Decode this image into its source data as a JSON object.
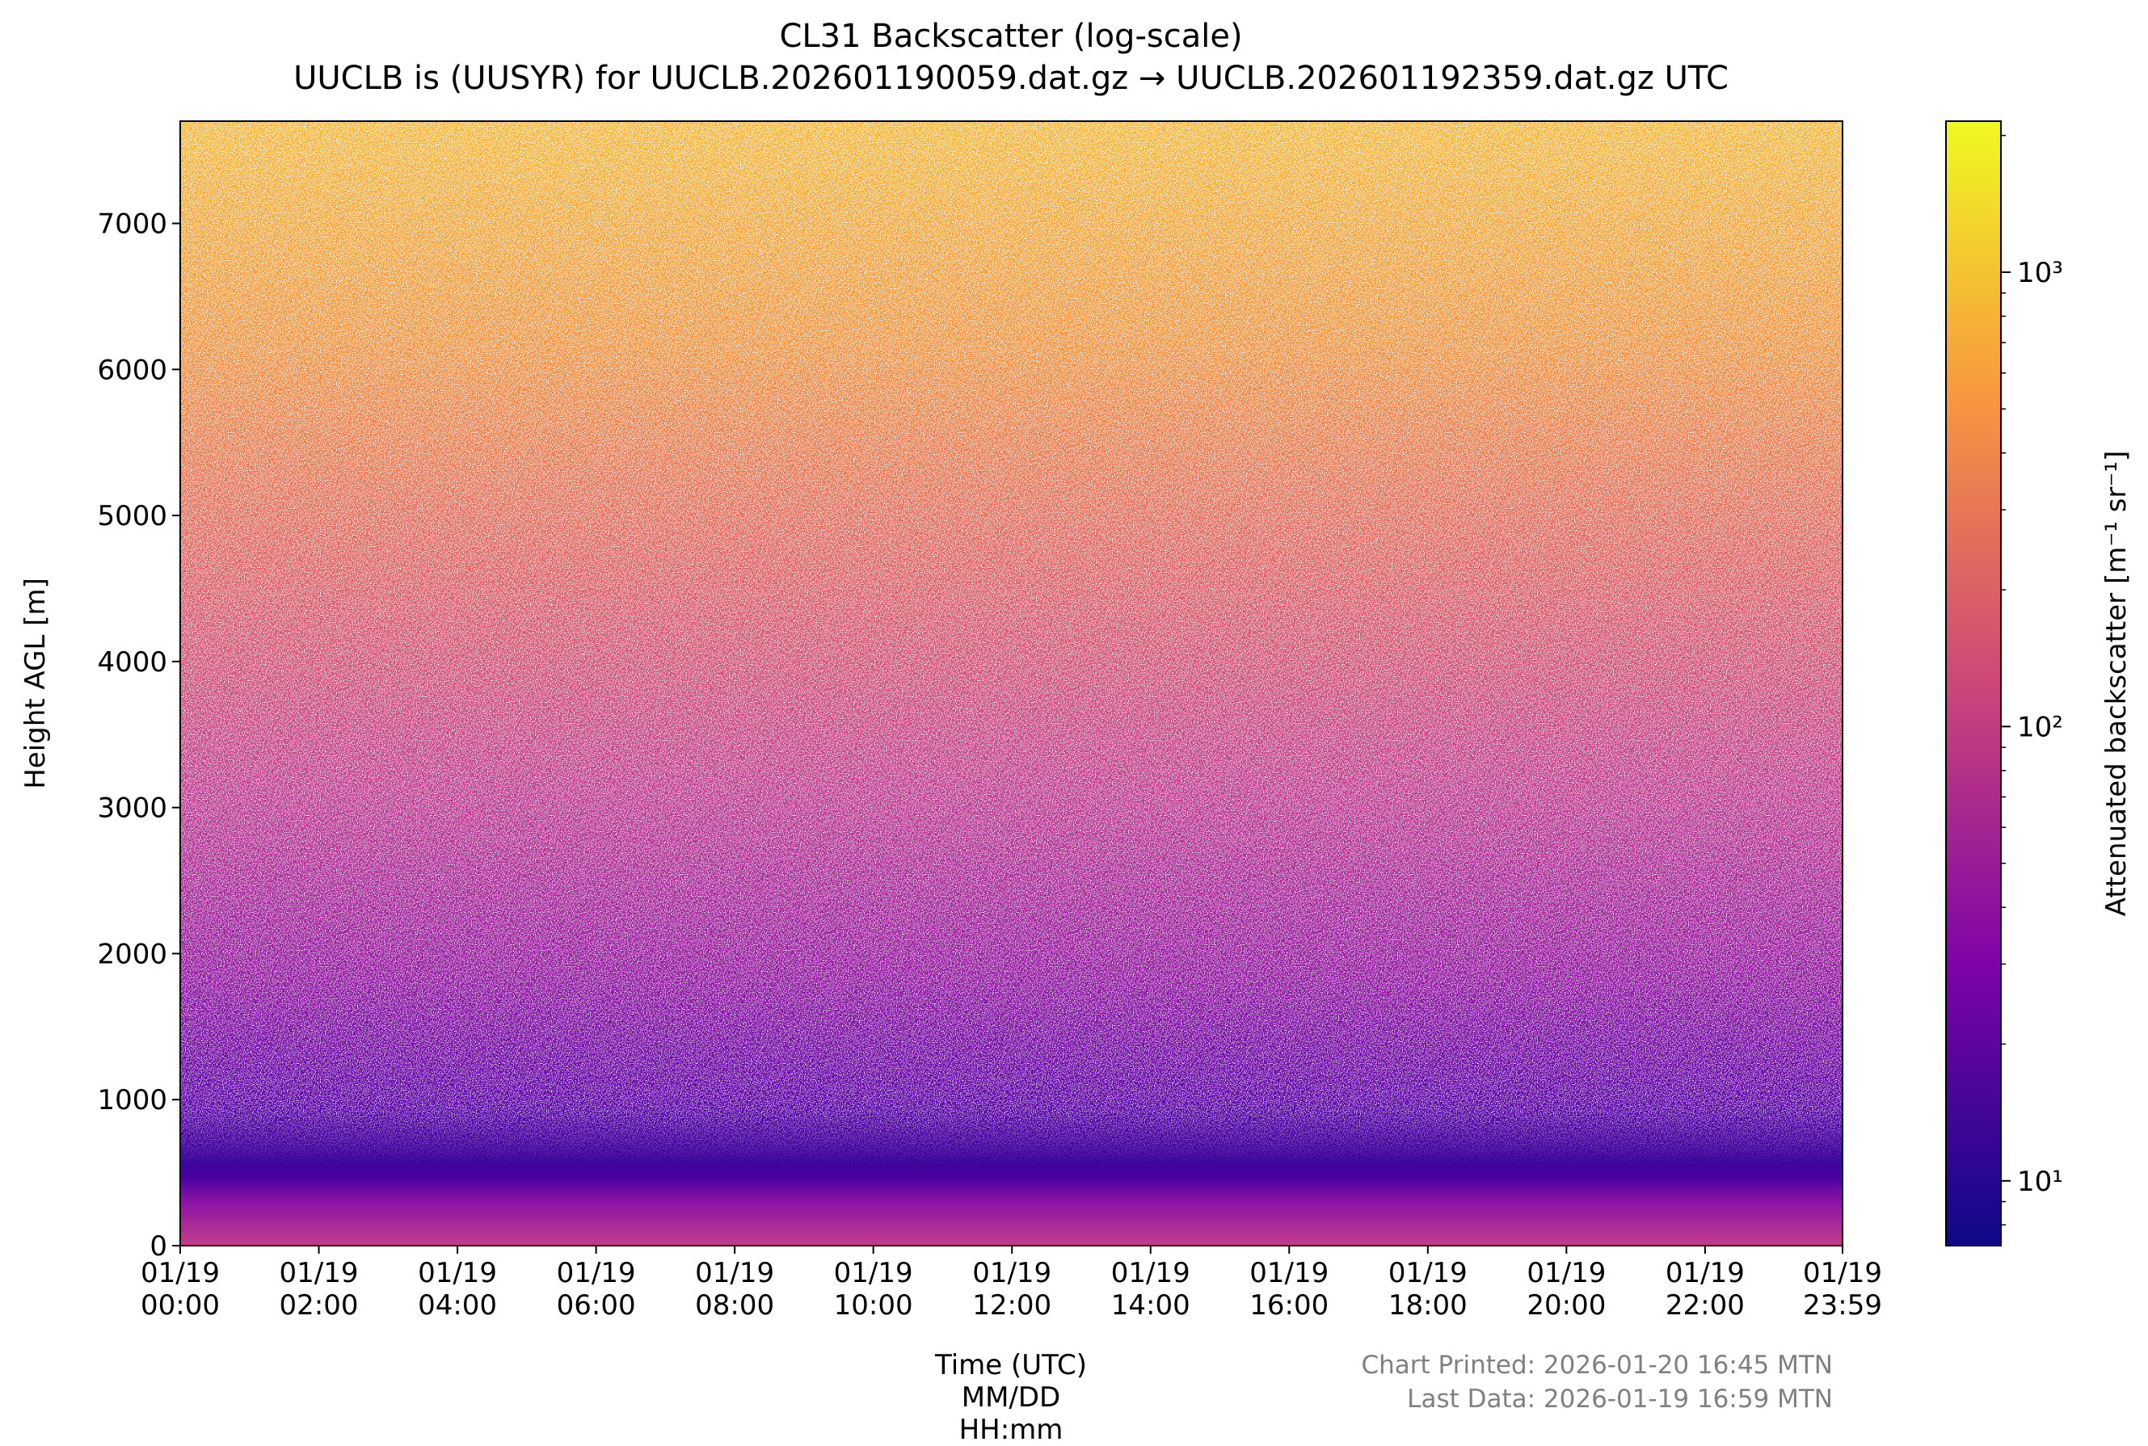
{
  "chart_data": {
    "type": "heatmap",
    "title": "CL31 Backscatter (log-scale)",
    "subtitle": "UUCLB is (UUSYR) for UUCLB.202601190059.dat.gz → UUCLB.202601192359.dat.gz UTC",
    "x_label": "Time (UTC) MM/DD\nHH:mm",
    "y_label": "Height AGL [m]",
    "xlim": [
      0,
      23.9833
    ],
    "xticks": [
      {
        "value": 0,
        "label": "01/19\n00:00"
      },
      {
        "value": 2,
        "label": "01/19\n02:00"
      },
      {
        "value": 4,
        "label": "01/19\n04:00"
      },
      {
        "value": 6,
        "label": "01/19\n06:00"
      },
      {
        "value": 8,
        "label": "01/19\n08:00"
      },
      {
        "value": 10,
        "label": "01/19\n10:00"
      },
      {
        "value": 12,
        "label": "01/19\n12:00"
      },
      {
        "value": 14,
        "label": "01/19\n14:00"
      },
      {
        "value": 16,
        "label": "01/19\n16:00"
      },
      {
        "value": 18,
        "label": "01/19\n18:00"
      },
      {
        "value": 20,
        "label": "01/19\n20:00"
      },
      {
        "value": 22,
        "label": "01/19\n22:00"
      },
      {
        "value": 23.9833,
        "label": "01/19\n23:59"
      }
    ],
    "ylim": [
      0,
      7700
    ],
    "yticks": [
      0,
      1000,
      2000,
      3000,
      4000,
      5000,
      6000,
      7000
    ],
    "colorbar": {
      "label": "Attenuated backscatter [m⁻¹ sr⁻¹]",
      "cmap": "plasma",
      "log_scale": true,
      "clim": [
        7.2,
        2150
      ],
      "ticks": [
        {
          "value": 10,
          "label": "10¹"
        },
        {
          "value": 100,
          "label": "10²"
        },
        {
          "value": 1000,
          "label": "10³"
        }
      ]
    },
    "annotations": [
      "Chart Printed: 2026-01-20 16:45 MTN",
      "Last Data: 2026-01-19 16:59 MTN"
    ]
  }
}
